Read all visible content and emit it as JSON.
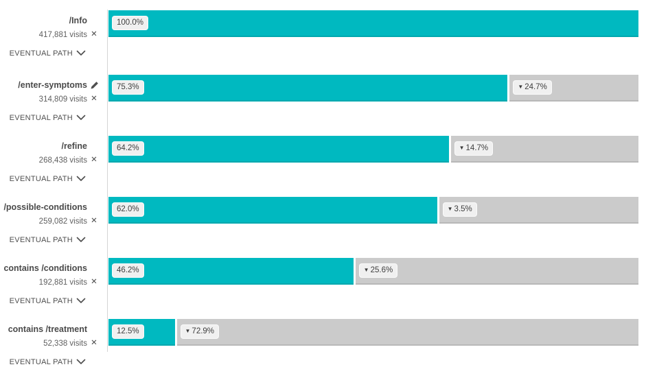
{
  "chart_data": {
    "type": "bar",
    "subtype": "fallout-funnel",
    "orientation": "horizontal",
    "title": "",
    "xlim": [
      0,
      100
    ],
    "unit": "%",
    "categories": [
      "/Info",
      "/enter-symptoms",
      "/refine",
      "/possible-conditions",
      "contains /conditions",
      "contains /treatment"
    ],
    "series": [
      {
        "name": "reached-percent-of-first-step",
        "values": [
          100.0,
          75.3,
          64.2,
          62.0,
          46.2,
          12.5
        ],
        "color": "#00b9c0"
      },
      {
        "name": "fallout-percent-of-previous-step",
        "values": [
          null,
          24.7,
          14.7,
          3.5,
          25.6,
          72.9
        ],
        "color": "#cbcbcb"
      }
    ],
    "visits": [
      417881,
      314809,
      268438,
      259082,
      192881,
      52338
    ],
    "grid": false,
    "legend": "none"
  },
  "eventual_path_label": "EVENTUAL PATH",
  "icons": {
    "close_glyph": "✕",
    "fallout_marker": "▼"
  },
  "colors": {
    "bar_teal": "#00b9c0",
    "bar_gray": "#cbcbcb",
    "badge_bg": "#f0f0f0",
    "text_dark": "#4a4a4a",
    "axis_line": "#d4d4d4"
  },
  "steps": [
    {
      "name": "/Info",
      "visits_label": "417,881 visits",
      "pct": 100.0,
      "pct_label": "100.0%",
      "fallout_pct": null,
      "fallout_label": "",
      "editable": false
    },
    {
      "name": "/enter-symptoms",
      "visits_label": "314,809 visits",
      "pct": 75.3,
      "pct_label": "75.3%",
      "fallout_pct": 24.7,
      "fallout_label": "24.7%",
      "editable": true
    },
    {
      "name": "/refine",
      "visits_label": "268,438 visits",
      "pct": 64.2,
      "pct_label": "64.2%",
      "fallout_pct": 14.7,
      "fallout_label": "14.7%",
      "editable": false
    },
    {
      "name": "/possible-conditions",
      "visits_label": "259,082 visits",
      "pct": 62.0,
      "pct_label": "62.0%",
      "fallout_pct": 3.5,
      "fallout_label": "3.5%",
      "editable": false
    },
    {
      "name": "contains /conditions",
      "visits_label": "192,881 visits",
      "pct": 46.2,
      "pct_label": "46.2%",
      "fallout_pct": 25.6,
      "fallout_label": "25.6%",
      "editable": false
    },
    {
      "name": "contains /treatment",
      "visits_label": "52,338 visits",
      "pct": 12.5,
      "pct_label": "12.5%",
      "fallout_pct": 72.9,
      "fallout_label": "72.9%",
      "editable": false
    }
  ]
}
